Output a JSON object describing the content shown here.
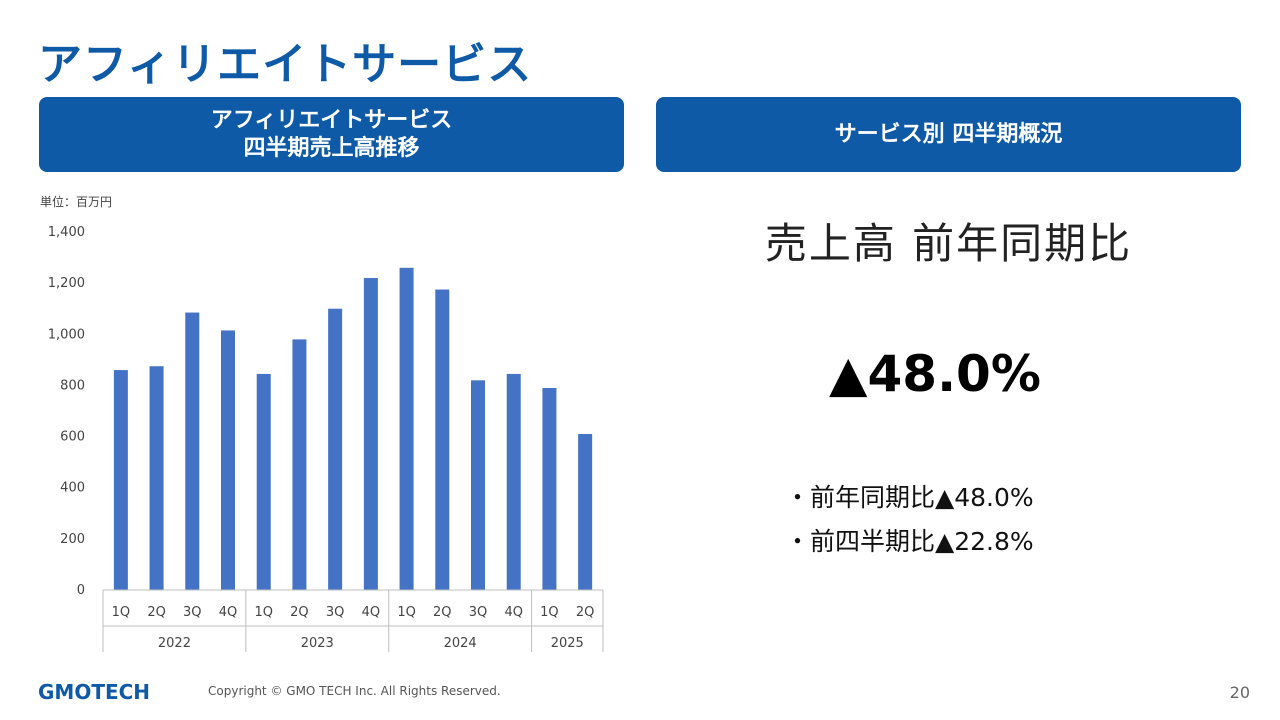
{
  "page": {
    "title": "アフィリエイトサービス",
    "page_number": "20"
  },
  "left_banner": {
    "line1": "アフィリエイトサービス",
    "line2": "四半期売上高推移"
  },
  "right_banner": {
    "label": "サービス別 四半期概況"
  },
  "unit_label": "単位：百万円",
  "summary": {
    "heading": "売上高 前年同期比",
    "value": "▲48.0%",
    "bullets": [
      "・前年同期比▲48.0%",
      "・前四半期比▲22.8%"
    ]
  },
  "footer": {
    "logo": "GMOTECH",
    "copyright": "Copyright © GMO TECH Inc. All Rights Reserved."
  },
  "colors": {
    "brand": "#0e5aa7",
    "bar": "#4472c4"
  },
  "chart_data": {
    "type": "bar",
    "categories": [
      "1Q",
      "2Q",
      "3Q",
      "4Q",
      "1Q",
      "2Q",
      "3Q",
      "4Q",
      "1Q",
      "2Q",
      "3Q",
      "4Q",
      "1Q",
      "2Q"
    ],
    "groups": [
      {
        "label": "2022",
        "count": 4
      },
      {
        "label": "2023",
        "count": 4
      },
      {
        "label": "2024",
        "count": 4
      },
      {
        "label": "2025",
        "count": 2
      }
    ],
    "values": [
      860,
      875,
      1085,
      1015,
      845,
      980,
      1100,
      1220,
      1260,
      1175,
      820,
      845,
      790,
      610
    ],
    "ylim": [
      0,
      1400
    ],
    "yticks": [
      0,
      200,
      400,
      600,
      800,
      1000,
      1200,
      1400
    ],
    "ytick_labels": [
      "0",
      "200",
      "400",
      "600",
      "800",
      "1,000",
      "1,200",
      "1,400"
    ],
    "grid": false
  }
}
